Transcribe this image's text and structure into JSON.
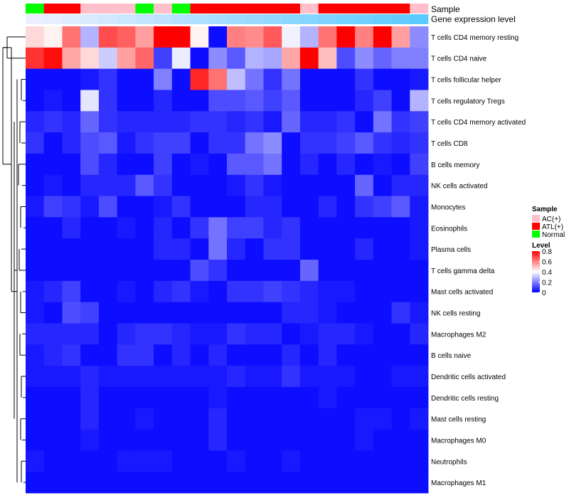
{
  "chart_data": {
    "type": "heatmap",
    "annotation_tracks": [
      {
        "name": "Sample",
        "label": "Sample"
      },
      {
        "name": "Gene expression level",
        "label": "Gene expression level"
      }
    ],
    "sample_colors": {
      "AC(+)": "#FFC0CB",
      "ATL(+)": "#FF0000",
      "Normal": "#00FF00"
    },
    "sample_annotation": [
      "Normal",
      "ATL(+)",
      "ATL(+)",
      "AC(+)",
      "AC(+)",
      "AC(+)",
      "Normal",
      "AC(+)",
      "Normal",
      "ATL(+)",
      "ATL(+)",
      "ATL(+)",
      "ATL(+)",
      "ATL(+)",
      "ATL(+)",
      "AC(+)",
      "ATL(+)",
      "ATL(+)",
      "ATL(+)",
      "ATL(+)",
      "ATL(+)",
      "AC(+)"
    ],
    "expression_annotation": [
      0.02,
      0.06,
      0.1,
      0.14,
      0.19,
      0.23,
      0.28,
      0.32,
      0.37,
      0.41,
      0.45,
      0.5,
      0.54,
      0.58,
      0.63,
      0.67,
      0.71,
      0.76,
      0.8,
      0.85,
      0.89,
      0.93
    ],
    "rows": [
      "T cells CD4 memory resting",
      "T cells CD4 naive",
      "T cells follicular helper",
      "T cells regulatory  Tregs",
      "T cells CD4 memory activated",
      "T cells CD8",
      "B cells memory",
      "NK cells activated",
      "Monocytes",
      "Eosinophils",
      "Plasma cells",
      "T cells gamma delta",
      "Mast cells activated",
      "NK cells resting",
      "Macrophages M2",
      "B cells naive",
      "Dendritic cells activated",
      "Dendritic cells resting",
      "Mast cells resting",
      "Macrophages M0",
      "Neutrophils",
      "Macrophages M1"
    ],
    "values": [
      [
        0.46,
        0.42,
        0.62,
        0.28,
        0.68,
        0.65,
        0.55,
        0.8,
        0.8,
        0.42,
        0.02,
        0.6,
        0.58,
        0.66,
        0.38,
        0.28,
        0.62,
        0.8,
        0.6,
        0.8,
        0.55,
        0.22
      ],
      [
        0.72,
        0.78,
        0.54,
        0.46,
        0.32,
        0.55,
        0.64,
        0.1,
        0.37,
        0.02,
        0.22,
        0.14,
        0.28,
        0.26,
        0.54,
        0.8,
        0.5,
        0.12,
        0.22,
        0.16,
        0.2,
        0.2
      ],
      [
        0.02,
        0.02,
        0.02,
        0.04,
        0.08,
        0.02,
        0.02,
        0.2,
        0.02,
        0.74,
        0.62,
        0.3,
        0.18,
        0.08,
        0.18,
        0.02,
        0.02,
        0.02,
        0.08,
        0.02,
        0.02,
        0.04
      ],
      [
        0.02,
        0.04,
        0.02,
        0.36,
        0.08,
        0.02,
        0.02,
        0.06,
        0.02,
        0.02,
        0.12,
        0.12,
        0.14,
        0.1,
        0.14,
        0.02,
        0.02,
        0.02,
        0.06,
        0.1,
        0.02,
        0.28
      ],
      [
        0.06,
        0.08,
        0.06,
        0.16,
        0.08,
        0.06,
        0.06,
        0.06,
        0.06,
        0.08,
        0.08,
        0.06,
        0.08,
        0.04,
        0.16,
        0.06,
        0.06,
        0.08,
        0.02,
        0.18,
        0.08,
        0.1
      ],
      [
        0.08,
        0.02,
        0.06,
        0.12,
        0.14,
        0.04,
        0.08,
        0.1,
        0.1,
        0.02,
        0.08,
        0.08,
        0.18,
        0.22,
        0.02,
        0.08,
        0.08,
        0.1,
        0.14,
        0.08,
        0.06,
        0.08
      ],
      [
        0.02,
        0.02,
        0.02,
        0.12,
        0.06,
        0.02,
        0.02,
        0.1,
        0.02,
        0.04,
        0.02,
        0.14,
        0.14,
        0.18,
        0.02,
        0.06,
        0.02,
        0.06,
        0.02,
        0.04,
        0.02,
        0.1
      ],
      [
        0.02,
        0.04,
        0.02,
        0.06,
        0.06,
        0.06,
        0.14,
        0.08,
        0.02,
        0.02,
        0.02,
        0.04,
        0.08,
        0.04,
        0.02,
        0.02,
        0.02,
        0.02,
        0.16,
        0.02,
        0.06,
        0.06
      ],
      [
        0.04,
        0.1,
        0.08,
        0.04,
        0.12,
        0.02,
        0.02,
        0.04,
        0.08,
        0.02,
        0.02,
        0.02,
        0.06,
        0.06,
        0.02,
        0.02,
        0.06,
        0.02,
        0.08,
        0.1,
        0.14,
        0.04
      ],
      [
        0.02,
        0.02,
        0.06,
        0.02,
        0.02,
        0.04,
        0.02,
        0.06,
        0.02,
        0.08,
        0.18,
        0.1,
        0.1,
        0.06,
        0.08,
        0.02,
        0.02,
        0.02,
        0.02,
        0.02,
        0.02,
        0.04
      ],
      [
        0.02,
        0.02,
        0.02,
        0.02,
        0.02,
        0.02,
        0.02,
        0.06,
        0.06,
        0.02,
        0.18,
        0.06,
        0.02,
        0.08,
        0.08,
        0.02,
        0.02,
        0.02,
        0.06,
        0.02,
        0.02,
        0.04
      ],
      [
        0.02,
        0.02,
        0.02,
        0.02,
        0.02,
        0.02,
        0.02,
        0.02,
        0.02,
        0.12,
        0.08,
        0.02,
        0.02,
        0.02,
        0.02,
        0.16,
        0.02,
        0.02,
        0.02,
        0.02,
        0.02,
        0.02
      ],
      [
        0.04,
        0.06,
        0.1,
        0.02,
        0.02,
        0.04,
        0.02,
        0.06,
        0.08,
        0.04,
        0.02,
        0.08,
        0.08,
        0.1,
        0.08,
        0.06,
        0.04,
        0.04,
        0.02,
        0.02,
        0.02,
        0.02
      ],
      [
        0.04,
        0.02,
        0.12,
        0.1,
        0.02,
        0.02,
        0.02,
        0.02,
        0.02,
        0.02,
        0.02,
        0.02,
        0.02,
        0.02,
        0.06,
        0.06,
        0.04,
        0.02,
        0.02,
        0.02,
        0.08,
        0.04
      ],
      [
        0.06,
        0.06,
        0.06,
        0.06,
        0.02,
        0.06,
        0.08,
        0.08,
        0.06,
        0.04,
        0.04,
        0.08,
        0.06,
        0.06,
        0.02,
        0.04,
        0.06,
        0.06,
        0.04,
        0.02,
        0.02,
        0.06
      ],
      [
        0.04,
        0.06,
        0.08,
        0.02,
        0.02,
        0.08,
        0.08,
        0.02,
        0.06,
        0.02,
        0.06,
        0.02,
        0.02,
        0.02,
        0.06,
        0.02,
        0.06,
        0.02,
        0.02,
        0.02,
        0.02,
        0.02
      ],
      [
        0.04,
        0.04,
        0.04,
        0.06,
        0.04,
        0.04,
        0.04,
        0.04,
        0.04,
        0.04,
        0.04,
        0.06,
        0.04,
        0.04,
        0.08,
        0.04,
        0.04,
        0.04,
        0.02,
        0.02,
        0.04,
        0.04
      ],
      [
        0.02,
        0.02,
        0.02,
        0.06,
        0.02,
        0.02,
        0.02,
        0.02,
        0.02,
        0.02,
        0.04,
        0.02,
        0.02,
        0.02,
        0.02,
        0.02,
        0.04,
        0.02,
        0.02,
        0.02,
        0.02,
        0.02
      ],
      [
        0.02,
        0.02,
        0.02,
        0.06,
        0.02,
        0.02,
        0.04,
        0.02,
        0.02,
        0.02,
        0.06,
        0.02,
        0.02,
        0.02,
        0.02,
        0.02,
        0.02,
        0.02,
        0.04,
        0.04,
        0.02,
        0.04
      ],
      [
        0.02,
        0.02,
        0.02,
        0.04,
        0.02,
        0.02,
        0.02,
        0.02,
        0.02,
        0.02,
        0.06,
        0.02,
        0.02,
        0.02,
        0.02,
        0.02,
        0.02,
        0.02,
        0.04,
        0.02,
        0.02,
        0.02
      ],
      [
        0.04,
        0.02,
        0.02,
        0.02,
        0.02,
        0.04,
        0.04,
        0.04,
        0.02,
        0.02,
        0.02,
        0.04,
        0.02,
        0.02,
        0.04,
        0.02,
        0.02,
        0.02,
        0.02,
        0.02,
        0.02,
        0.02
      ],
      [
        0.02,
        0.02,
        0.02,
        0.02,
        0.02,
        0.02,
        0.02,
        0.02,
        0.02,
        0.02,
        0.02,
        0.02,
        0.02,
        0.02,
        0.02,
        0.02,
        0.02,
        0.02,
        0.02,
        0.02,
        0.02,
        0.02
      ]
    ],
    "dendrogram": {
      "side": "left",
      "first_split": [
        [
          "T cells CD4 memory resting",
          "T cells CD4 naive"
        ]
      ]
    },
    "color_scale": {
      "low": "#0000FF",
      "mid": "#FFFFFF",
      "high": "#FF0000",
      "min": 0,
      "mid_value": 0.4,
      "max": 0.8
    },
    "legend": {
      "placement": "right",
      "sample_title": "Sample",
      "sample_items": [
        "AC(+)",
        "ATL(+)",
        "Normal"
      ],
      "level_title": "Level",
      "level_ticks": [
        "0.8",
        "0.6",
        "0.4",
        "0.2",
        "0"
      ]
    }
  }
}
